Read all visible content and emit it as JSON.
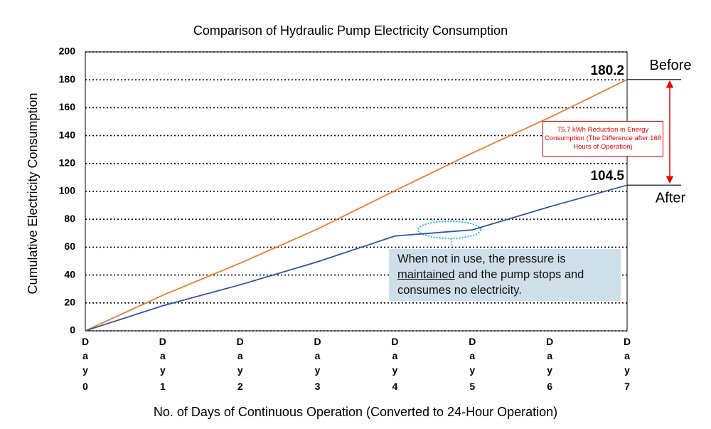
{
  "chart_data": {
    "type": "line",
    "title": "Comparison of Hydraulic Pump Electricity Consumption",
    "x_label": "No. of Days of Continuous Operation (Converted to 24-Hour Operation)",
    "y_label": "Cumulative Electricity Consumption",
    "categories": [
      "Day 0",
      "Day 1",
      "Day 2",
      "Day 3",
      "Day 4",
      "Day 5",
      "Day 6",
      "Day 7"
    ],
    "series": [
      {
        "name": "Before",
        "color": "#ed7d31",
        "values": [
          0,
          25.5,
          48.5,
          73,
          100.5,
          127.5,
          153,
          180.2
        ]
      },
      {
        "name": "After",
        "color": "#2f55a4",
        "values": [
          0,
          18,
          33,
          49.5,
          68,
          72.4,
          89,
          104.5
        ]
      }
    ],
    "ylim": [
      0,
      200
    ],
    "yticks": [
      0,
      20,
      40,
      60,
      80,
      100,
      120,
      140,
      160,
      180,
      200
    ],
    "grid": true,
    "annotations": {
      "difference": "75.7 kWh Reduction in Energy Consumption (The Difference after 168 Hours of Operation)",
      "callout": [
        "When not in use, the pressure is ",
        "maintained",
        " and the pump stops and consumes no electricity."
      ]
    }
  }
}
